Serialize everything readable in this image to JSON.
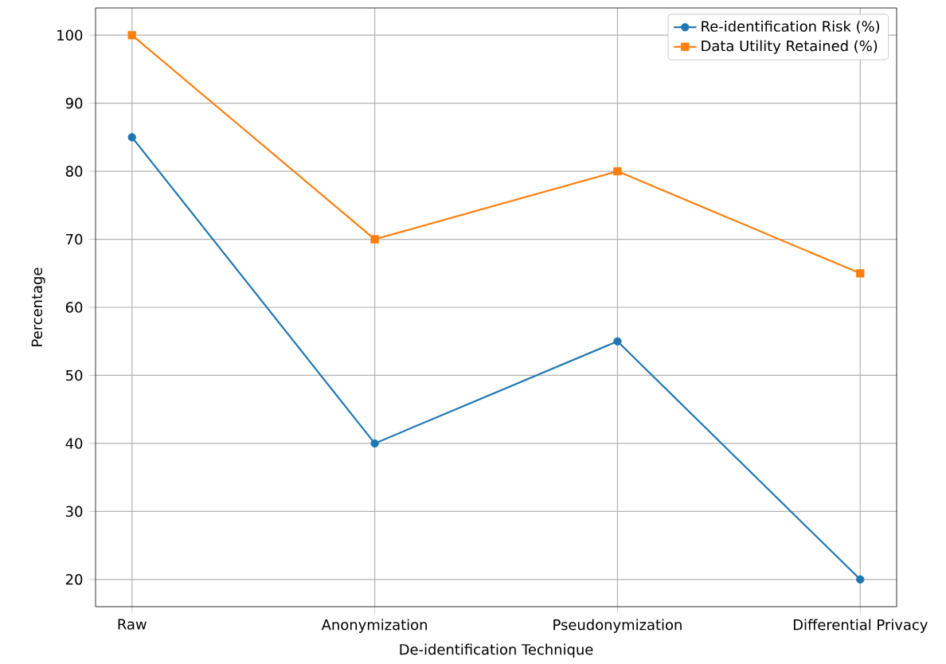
{
  "chart_data": {
    "type": "line",
    "xlabel": "De-identification Technique",
    "ylabel": "Percentage",
    "categories": [
      "Raw",
      "Anonymization",
      "Pseudonymization",
      "Differential Privacy"
    ],
    "series": [
      {
        "name": "Re-identification Risk (%)",
        "color": "#1f77b4",
        "marker": "circle",
        "values": [
          85,
          40,
          55,
          20
        ]
      },
      {
        "name": "Data Utility Retained (%)",
        "color": "#ff7f0e",
        "marker": "square",
        "values": [
          100,
          70,
          80,
          65
        ]
      }
    ],
    "ylim": [
      16,
      104
    ],
    "yticks": [
      20,
      30,
      40,
      50,
      60,
      70,
      80,
      90,
      100
    ],
    "grid": true,
    "legend": "top right"
  }
}
